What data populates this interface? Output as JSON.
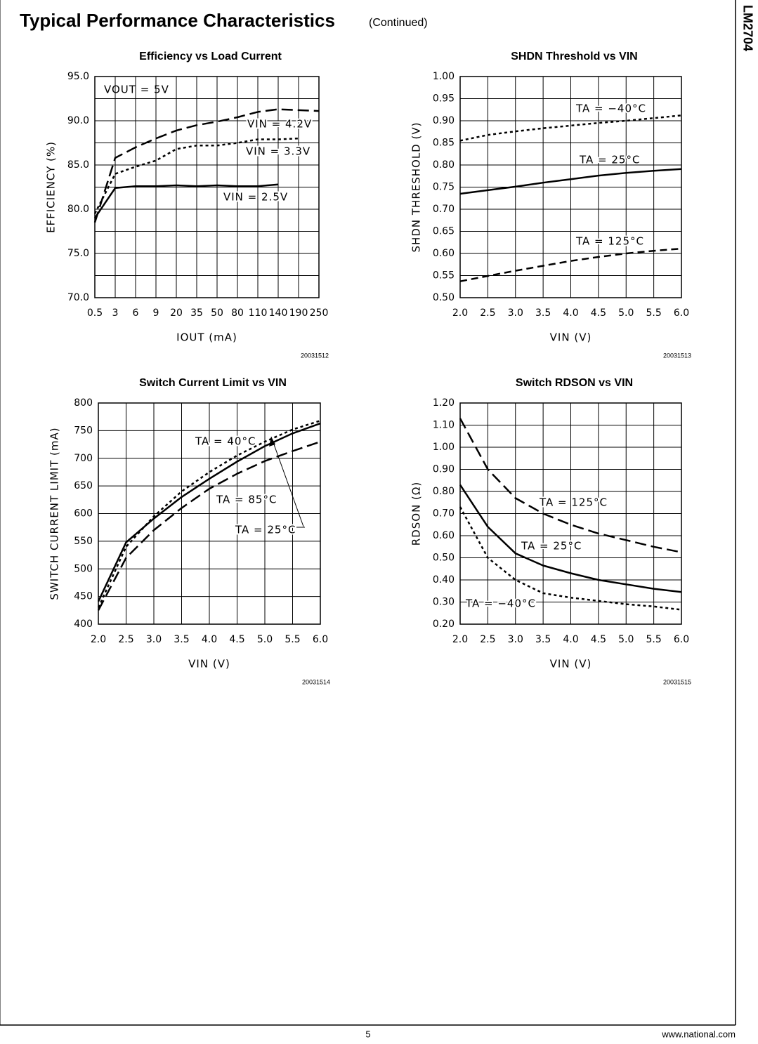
{
  "header": {
    "title": "Typical Performance Characteristics",
    "subtitle": "(Continued)",
    "side_label": "LM2704"
  },
  "footer": {
    "page": "5",
    "url": "www.national.com"
  },
  "chart_data": [
    {
      "type": "line",
      "title": "Efficiency vs Load Current",
      "figure_id": "20031512",
      "x_label": "IOUT (mA)",
      "y_label": "EFFICIENCY (%)",
      "annotation": "VOUT = 5V",
      "categories": [
        "0.5",
        "3",
        "6",
        "9",
        "20",
        "35",
        "50",
        "80",
        "110",
        "140",
        "190",
        "250"
      ],
      "ylim": [
        70,
        95
      ],
      "yticks": [
        {
          "value": 70,
          "label": "70.0"
        },
        {
          "value": 75,
          "label": "75.0"
        },
        {
          "value": 80,
          "label": "80.0"
        },
        {
          "value": 85,
          "label": "85.0"
        },
        {
          "value": 90,
          "label": "90.0"
        },
        {
          "value": 95,
          "label": "95.0"
        }
      ],
      "grid": true,
      "minor_grid": true,
      "series": [
        {
          "name": "VIN = 4.2V",
          "color": "#000000",
          "style": "longdash",
          "values": [
            78.5,
            85.8,
            87.0,
            88.0,
            88.9,
            89.5,
            89.9,
            90.4,
            91.0,
            91.3,
            91.2,
            91.1
          ]
        },
        {
          "name": "VIN = 3.3V",
          "color": "#000000",
          "style": "dotted",
          "values": [
            79.5,
            84.0,
            84.8,
            85.5,
            86.8,
            87.2,
            87.2,
            87.5,
            87.9,
            87.9,
            88.0,
            null
          ]
        },
        {
          "name": "VIN = 2.5V",
          "color": "#000000",
          "style": "solid",
          "values": [
            79.0,
            82.4,
            82.6,
            82.6,
            82.7,
            82.6,
            82.7,
            82.6,
            82.6,
            82.8,
            null,
            null
          ]
        }
      ]
    },
    {
      "type": "line",
      "title": "SHDN Threshold vs VIN",
      "figure_id": "20031513",
      "x_label": "VIN (V)",
      "y_label": "SHDN THRESHOLD (V)",
      "x": [
        2.0,
        2.5,
        3.0,
        3.5,
        4.0,
        4.5,
        5.0,
        5.5,
        6.0
      ],
      "xlim": [
        2.0,
        6.0
      ],
      "xticks": [
        {
          "value": 2.0,
          "label": "2.0"
        },
        {
          "value": 2.5,
          "label": "2.5"
        },
        {
          "value": 3.0,
          "label": "3.0"
        },
        {
          "value": 3.5,
          "label": "3.5"
        },
        {
          "value": 4.0,
          "label": "4.0"
        },
        {
          "value": 4.5,
          "label": "4.5"
        },
        {
          "value": 5.0,
          "label": "5.0"
        },
        {
          "value": 5.5,
          "label": "5.5"
        },
        {
          "value": 6.0,
          "label": "6.0"
        }
      ],
      "ylim": [
        0.5,
        1.0
      ],
      "yticks": [
        {
          "value": 0.5,
          "label": "0.50"
        },
        {
          "value": 0.55,
          "label": "0.55"
        },
        {
          "value": 0.6,
          "label": "0.60"
        },
        {
          "value": 0.65,
          "label": "0.65"
        },
        {
          "value": 0.7,
          "label": "0.70"
        },
        {
          "value": 0.75,
          "label": "0.75"
        },
        {
          "value": 0.8,
          "label": "0.80"
        },
        {
          "value": 0.85,
          "label": "0.85"
        },
        {
          "value": 0.9,
          "label": "0.90"
        },
        {
          "value": 0.95,
          "label": "0.95"
        },
        {
          "value": 1.0,
          "label": "1.00"
        }
      ],
      "grid": true,
      "series": [
        {
          "name": "TA = −40°C",
          "color": "#000000",
          "style": "dotted",
          "values": [
            0.855,
            0.868,
            0.876,
            0.883,
            0.889,
            0.895,
            0.9,
            0.906,
            0.912
          ]
        },
        {
          "name": "TA = 25°C",
          "color": "#000000",
          "style": "solid",
          "values": [
            0.735,
            0.743,
            0.751,
            0.76,
            0.768,
            0.776,
            0.782,
            0.787,
            0.791
          ]
        },
        {
          "name": "TA = 125°C",
          "color": "#000000",
          "style": "dashed",
          "values": [
            0.537,
            0.549,
            0.561,
            0.572,
            0.583,
            0.592,
            0.6,
            0.606,
            0.611
          ]
        }
      ]
    },
    {
      "type": "line",
      "title": "Switch Current Limit vs VIN",
      "figure_id": "20031514",
      "x_label": "VIN (V)",
      "y_label": "SWITCH CURRENT LIMIT (mA)",
      "x": [
        2.0,
        2.5,
        3.0,
        3.5,
        4.0,
        4.5,
        5.0,
        5.5,
        6.0
      ],
      "xlim": [
        2.0,
        6.0
      ],
      "xticks": [
        {
          "value": 2.0,
          "label": "2.0"
        },
        {
          "value": 2.5,
          "label": "2.5"
        },
        {
          "value": 3.0,
          "label": "3.0"
        },
        {
          "value": 3.5,
          "label": "3.5"
        },
        {
          "value": 4.0,
          "label": "4.0"
        },
        {
          "value": 4.5,
          "label": "4.5"
        },
        {
          "value": 5.0,
          "label": "5.0"
        },
        {
          "value": 5.5,
          "label": "5.5"
        },
        {
          "value": 6.0,
          "label": "6.0"
        }
      ],
      "ylim": [
        400,
        800
      ],
      "yticks": [
        400,
        450,
        500,
        550,
        600,
        650,
        700,
        750,
        800
      ],
      "grid": true,
      "series": [
        {
          "name": "TA = 40°C",
          "color": "#000000",
          "style": "solid",
          "values": [
            441,
            548,
            591,
            630,
            663,
            694,
            722,
            745,
            763
          ]
        },
        {
          "name": "TA = 85°C",
          "color": "#000000",
          "style": "dotted",
          "values": [
            430,
            540,
            595,
            640,
            675,
            705,
            730,
            752,
            768
          ]
        },
        {
          "name": "TA = 25°C",
          "color": "#000000",
          "style": "longdash",
          "values": [
            425,
            520,
            570,
            610,
            645,
            672,
            695,
            713,
            730
          ]
        }
      ]
    },
    {
      "type": "line",
      "title": "Switch RDSON vs VIN",
      "figure_id": "20031515",
      "x_label": "VIN (V)",
      "y_label": "RDSON (Ω)",
      "x": [
        2.0,
        2.5,
        3.0,
        3.5,
        4.0,
        4.5,
        5.0,
        5.5,
        6.0
      ],
      "xlim": [
        2.0,
        6.0
      ],
      "xticks": [
        {
          "value": 2.0,
          "label": "2.0"
        },
        {
          "value": 2.5,
          "label": "2.5"
        },
        {
          "value": 3.0,
          "label": "3.0"
        },
        {
          "value": 3.5,
          "label": "3.5"
        },
        {
          "value": 4.0,
          "label": "4.0"
        },
        {
          "value": 4.5,
          "label": "4.5"
        },
        {
          "value": 5.0,
          "label": "5.0"
        },
        {
          "value": 5.5,
          "label": "5.5"
        },
        {
          "value": 6.0,
          "label": "6.0"
        }
      ],
      "ylim": [
        0.2,
        1.2
      ],
      "yticks": [
        {
          "value": 0.2,
          "label": "0.20"
        },
        {
          "value": 0.3,
          "label": "0.30"
        },
        {
          "value": 0.4,
          "label": "0.40"
        },
        {
          "value": 0.5,
          "label": "0.50"
        },
        {
          "value": 0.6,
          "label": "0.60"
        },
        {
          "value": 0.7,
          "label": "0.70"
        },
        {
          "value": 0.8,
          "label": "0.80"
        },
        {
          "value": 0.9,
          "label": "0.90"
        },
        {
          "value": 1.0,
          "label": "1.00"
        },
        {
          "value": 1.1,
          "label": "1.10"
        },
        {
          "value": 1.2,
          "label": "1.20"
        }
      ],
      "grid": true,
      "series": [
        {
          "name": "TA = 125°C",
          "color": "#000000",
          "style": "longdash",
          "values": [
            1.13,
            0.9,
            0.77,
            0.7,
            0.65,
            0.61,
            0.58,
            0.55,
            0.525
          ]
        },
        {
          "name": "TA = 25°C",
          "color": "#000000",
          "style": "solid",
          "values": [
            0.83,
            0.64,
            0.52,
            0.465,
            0.43,
            0.4,
            0.38,
            0.36,
            0.345
          ]
        },
        {
          "name": "TA = −40°C",
          "color": "#000000",
          "style": "dotted",
          "values": [
            0.73,
            0.5,
            0.4,
            0.34,
            0.32,
            0.305,
            0.29,
            0.28,
            0.265
          ]
        }
      ]
    }
  ]
}
